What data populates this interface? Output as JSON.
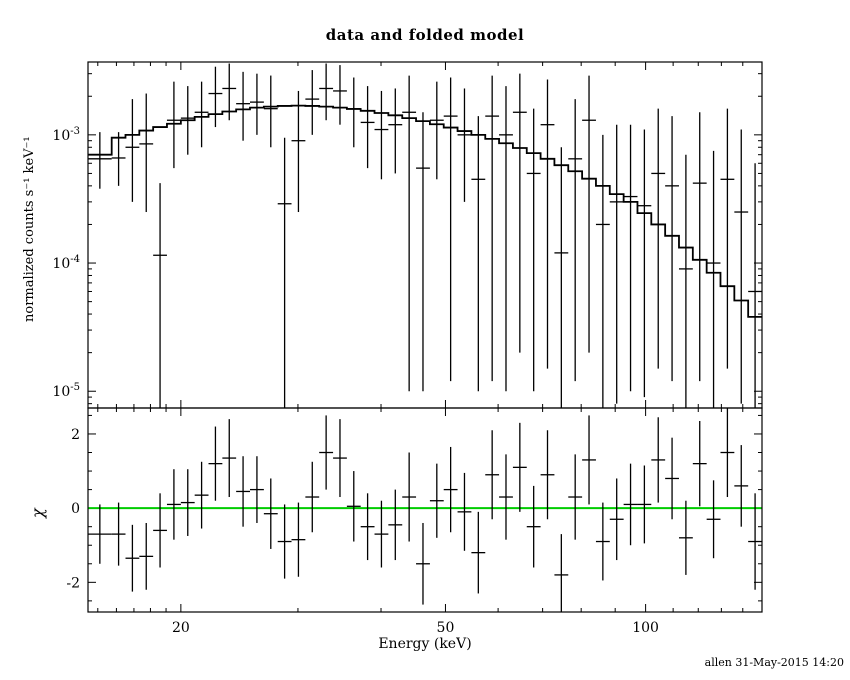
{
  "figure": {
    "background": "#ffffff",
    "axis_color": "#000000"
  },
  "footer": "allen 31-May-2015 14:20",
  "chart_data": [
    {
      "type": "scatter",
      "panel": "spectrum",
      "title": "data and folded model",
      "ylabel": "normalized counts s⁻¹ keV⁻¹",
      "xlabel": "Energy (keV)",
      "xscale": "log",
      "yscale": "log",
      "xlim": [
        14.5,
        149.64
      ],
      "ylim": [
        7.4e-06,
        0.0037
      ],
      "xticks_labeled": [
        20,
        50,
        100
      ],
      "xticks_minor": [
        15,
        16,
        17,
        18,
        19,
        30,
        40,
        60,
        70,
        80,
        90,
        110,
        120,
        130,
        140
      ],
      "yticks_labeled": [
        1e-05,
        0.0001,
        0.001
      ],
      "grid": false,
      "model_color": "#000000",
      "data_color": "#000000",
      "bin_edges": [
        14.5,
        15.74,
        16.51,
        17.32,
        18.17,
        19.06,
        20.0,
        20.98,
        22.01,
        23.09,
        24.22,
        25.41,
        26.66,
        27.97,
        29.34,
        30.78,
        32.29,
        33.88,
        35.54,
        37.28,
        39.11,
        41.03,
        43.05,
        45.16,
        47.38,
        49.7,
        52.14,
        54.7,
        57.39,
        60.2,
        63.16,
        66.26,
        69.51,
        72.92,
        76.5,
        80.26,
        84.2,
        88.33,
        92.67,
        97.22,
        101.99,
        107.0,
        112.25,
        117.76,
        123.54,
        129.6,
        135.97,
        142.64,
        149.64
      ],
      "model": [
        0.0007,
        0.00095,
        0.001,
        0.00108,
        0.00115,
        0.00122,
        0.0013,
        0.00138,
        0.00145,
        0.00152,
        0.00158,
        0.00163,
        0.00166,
        0.00168,
        0.00169,
        0.00168,
        0.00166,
        0.00163,
        0.00159,
        0.00154,
        0.00148,
        0.00142,
        0.00135,
        0.00128,
        0.00121,
        0.00114,
        0.00107,
        0.001,
        0.00093,
        0.00086,
        0.00079,
        0.00072,
        0.00065,
        0.00058,
        0.00052,
        0.000455,
        0.0004,
        0.000345,
        0.0003,
        0.000245,
        0.0002,
        0.000163,
        0.000132,
        0.000106,
        8.4e-05,
        6.6e-05,
        5.1e-05,
        3.8e-05
      ],
      "data_y": [
        0.00065,
        0.00066,
        0.0008,
        0.00085,
        0.000115,
        0.0013,
        0.00135,
        0.0015,
        0.0021,
        0.0023,
        0.00175,
        0.0018,
        0.0016,
        0.00029,
        0.0009,
        0.0019,
        0.0023,
        0.0022,
        0.0016,
        0.00125,
        0.0011,
        0.0012,
        0.0015,
        0.00055,
        0.0013,
        0.0014,
        0.001,
        0.00045,
        0.0014,
        0.001,
        0.0015,
        0.0005,
        0.0012,
        0.00012,
        0.00065,
        0.0013,
        0.0002,
        0.0003,
        0.00033,
        0.00028,
        0.0005,
        0.0004,
        9e-05,
        0.00042,
        0.0001,
        0.00045,
        0.00025,
        6e-05
      ],
      "data_lo": [
        0.00038,
        0.0004,
        0.0003,
        0.00025,
        5e-06,
        0.00055,
        0.0007,
        0.0008,
        0.00115,
        0.0013,
        0.0009,
        0.001,
        0.0008,
        6e-06,
        0.00025,
        0.001,
        0.0013,
        0.0012,
        0.0008,
        0.00055,
        0.00045,
        0.0005,
        1e-05,
        1e-05,
        0.00045,
        1.2e-05,
        0.0003,
        1e-05,
        1.2e-05,
        1e-05,
        2e-05,
        1e-05,
        1.5e-05,
        4e-06,
        1.2e-05,
        2e-05,
        5e-06,
        8e-06,
        1e-05,
        9e-06,
        1.5e-05,
        1.2e-05,
        3e-06,
        1.2e-05,
        4e-06,
        1.5e-05,
        8e-06,
        2e-06
      ],
      "data_hi": [
        0.00105,
        0.00105,
        0.0019,
        0.0021,
        0.00042,
        0.0026,
        0.0024,
        0.0026,
        0.0034,
        0.0036,
        0.0031,
        0.003,
        0.0029,
        0.00095,
        0.0022,
        0.0032,
        0.0036,
        0.0035,
        0.0028,
        0.0024,
        0.0022,
        0.0023,
        0.0029,
        0.0015,
        0.0026,
        0.0028,
        0.0023,
        0.0014,
        0.0029,
        0.0024,
        0.003,
        0.0016,
        0.0027,
        0.0008,
        0.0019,
        0.0029,
        0.001,
        0.0012,
        0.0012,
        0.0011,
        0.0016,
        0.0014,
        0.0007,
        0.0015,
        0.00075,
        0.0016,
        0.0011,
        0.0006
      ]
    },
    {
      "type": "scatter",
      "panel": "residuals",
      "ylabel": "χ",
      "xlabel": "Energy (keV)",
      "xscale": "log",
      "yscale": "linear",
      "xlim": [
        14.5,
        149.64
      ],
      "ylim": [
        -2.8,
        2.7
      ],
      "yticks_labeled": [
        -2,
        0,
        2
      ],
      "yticks_minor": [
        -2.5,
        -1.5,
        -1,
        -0.5,
        0.5,
        1,
        1.5,
        2.5
      ],
      "zero_line_color": "#00cc00",
      "chi": [
        -0.7,
        -0.7,
        -1.35,
        -1.3,
        -0.6,
        0.1,
        0.15,
        0.35,
        1.2,
        1.35,
        0.45,
        0.5,
        -0.15,
        -0.9,
        -0.85,
        0.3,
        1.5,
        1.35,
        0.05,
        -0.5,
        -0.7,
        -0.45,
        0.3,
        -1.5,
        0.2,
        0.5,
        -0.1,
        -1.2,
        0.9,
        0.3,
        1.1,
        -0.5,
        0.9,
        -1.8,
        0.3,
        1.3,
        -0.9,
        -0.3,
        0.1,
        0.1,
        1.3,
        0.8,
        -0.8,
        1.2,
        -0.3,
        1.5,
        0.6,
        -0.9
      ],
      "chi_err": [
        0.8,
        0.85,
        0.9,
        0.9,
        1.0,
        0.95,
        0.9,
        0.9,
        1.0,
        1.05,
        0.95,
        0.9,
        0.95,
        1.0,
        1.0,
        0.95,
        1.0,
        1.05,
        0.95,
        0.9,
        0.9,
        0.95,
        1.2,
        1.1,
        1.0,
        1.15,
        1.05,
        1.1,
        1.2,
        1.15,
        1.2,
        1.1,
        1.2,
        1.1,
        1.15,
        1.2,
        1.05,
        1.1,
        1.1,
        1.05,
        1.15,
        1.1,
        1.0,
        1.15,
        1.05,
        1.2,
        1.1,
        1.3
      ]
    }
  ]
}
